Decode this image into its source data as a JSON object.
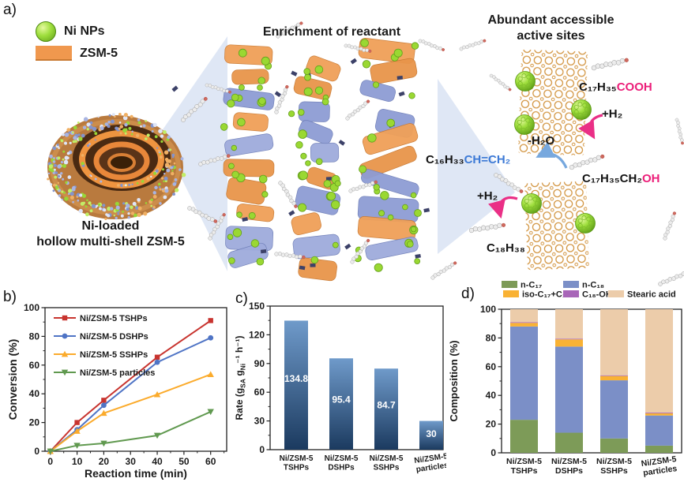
{
  "panels": {
    "a": "a)",
    "b": "b)",
    "c": "c)",
    "d": "d)"
  },
  "panel_a": {
    "legend": [
      {
        "label": "Ni NPs",
        "icon": "ni-nanoparticle-icon"
      },
      {
        "label": "ZSM-5",
        "icon": "zsm5-swatch-icon"
      }
    ],
    "title_center": "Enrichment of reactant",
    "title_right_line1": "Abundant accessible",
    "title_right_line2": "active sites",
    "catalyst_line1": "Ni-loaded",
    "catalyst_line2": "hollow multi-shell ZSM-5",
    "chem": {
      "stearic_black": "C₁₇H₃₅",
      "stearic_pink": "COOH",
      "h2_top": "+H₂",
      "h2o": "-H₂O",
      "alkene_black": "C₁₆H₃₃",
      "alkene_blue": "CH=CH₂",
      "alcohol_black": "C₁₇H₃₅CH₂",
      "alcohol_pink": "OH",
      "h2_bottom": "+H₂",
      "alkane": "C₁₈H₃₈"
    },
    "colors": {
      "ni_green": "#9ede3c",
      "zsm5_orange": "#f0984e",
      "pink": "#ec1e79",
      "blue": "#3d7ad6"
    }
  },
  "chart_data": [
    {
      "id": "b",
      "type": "line",
      "xlabel": "Reaction time (min)",
      "ylabel": "Conversion (%)",
      "xlim": [
        0,
        60
      ],
      "ylim": [
        0,
        100
      ],
      "xticks": [
        0,
        10,
        20,
        30,
        40,
        50,
        60
      ],
      "yticks": [
        0,
        20,
        40,
        60,
        80,
        100
      ],
      "grid": false,
      "legend_position": "top-left",
      "x": [
        0,
        10,
        20,
        40,
        60
      ],
      "series": [
        {
          "name": "Ni/ZSM-5 TSHPs",
          "color": "#c8342f",
          "marker": "square",
          "values": [
            0,
            20,
            35.5,
            65.5,
            91
          ]
        },
        {
          "name": "Ni/ZSM-5 DSHPs",
          "color": "#4f74c5",
          "marker": "circle",
          "values": [
            0,
            15,
            32,
            62,
            79
          ]
        },
        {
          "name": "Ni/ZSM-5 SSHPs",
          "color": "#fbab2c",
          "marker": "triangle-up",
          "values": [
            0,
            14,
            26.5,
            39.5,
            53.5
          ]
        },
        {
          "name": "Ni/ZSM-5 particles",
          "color": "#60994f",
          "marker": "triangle-down",
          "values": [
            0,
            4,
            5.5,
            11,
            27.5
          ]
        }
      ]
    },
    {
      "id": "c",
      "type": "bar",
      "ylabel_parts": [
        [
          "Rate (g",
          0
        ],
        [
          "SA",
          1
        ],
        [
          " g",
          0
        ],
        [
          "Ni",
          1
        ],
        [
          "⁻¹ h⁻¹)",
          0
        ]
      ],
      "ylim": [
        0,
        150
      ],
      "yticks": [
        0,
        30,
        60,
        90,
        120,
        150
      ],
      "categories": [
        [
          "Ni/ZSM-5",
          "TSHPs"
        ],
        [
          "Ni/ZSM-5",
          "DSHPs"
        ],
        [
          "Ni/ZSM-5",
          "SSHPs"
        ],
        [
          "Ni/ZSM-5",
          "particles"
        ]
      ],
      "values": [
        134.8,
        95.4,
        84.7,
        30
      ],
      "value_labels": [
        "134.8",
        "95.4",
        "84.7",
        "30"
      ],
      "bar_gradient_top": "#6f9aca",
      "bar_gradient_bottom": "#1b3a5f"
    },
    {
      "id": "d",
      "type": "stacked_bar",
      "ylabel": "Composition (%)",
      "ylim": [
        0,
        100
      ],
      "yticks": [
        0,
        20,
        40,
        60,
        80,
        100
      ],
      "categories": [
        [
          "Ni/ZSM-5",
          "TSHPs"
        ],
        [
          "Ni/ZSM-5",
          "DSHPs"
        ],
        [
          "Ni/ZSM-5",
          "SSHPs"
        ],
        [
          "Ni/ZSM-5",
          "particles"
        ]
      ],
      "legend_rows": [
        [
          0,
          1
        ],
        [
          2,
          3,
          4
        ]
      ],
      "series": [
        {
          "name": "n-C₁₇",
          "color": "#7d9b58",
          "values": [
            23,
            14,
            10,
            5
          ]
        },
        {
          "name": "n-C₁₈",
          "color": "#7b8fc7",
          "values": [
            65,
            60,
            40.5,
            21
          ]
        },
        {
          "name": "iso-C₁₇+C₁₈",
          "color": "#f9b234",
          "values": [
            2.5,
            5,
            3,
            1.5
          ]
        },
        {
          "name": "C₁₈-OH",
          "color": "#a866b8",
          "values": [
            0.5,
            0.5,
            0.5,
            0.5
          ]
        },
        {
          "name": "Stearic acid",
          "color": "#ecccaa",
          "values": [
            9,
            20.5,
            46,
            72
          ]
        }
      ]
    }
  ]
}
